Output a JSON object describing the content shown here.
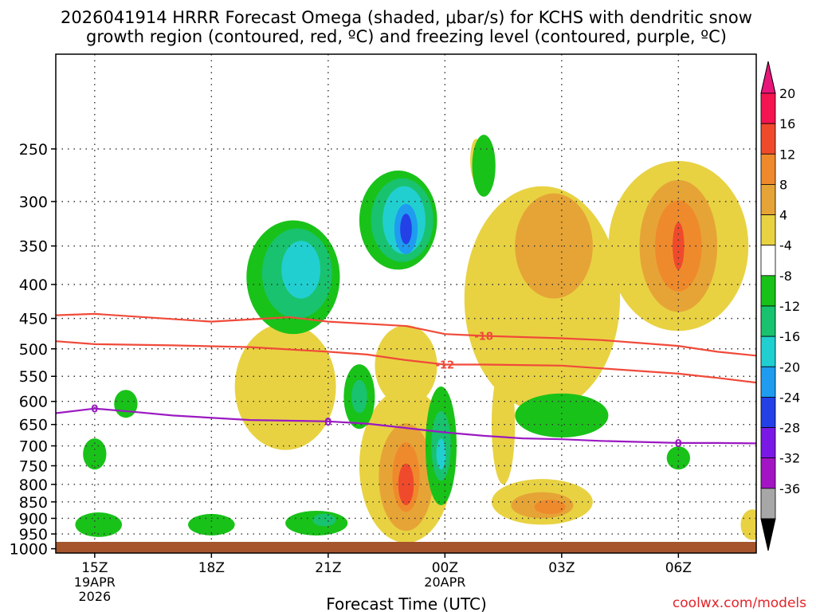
{
  "chart_data": {
    "type": "heatmap",
    "title_line1": "2026041914 HRRR Forecast Omega (shaded, μbar/s) for KCHS with dendritic snow",
    "title_line2": "growth region (contoured, red, ºC) and freezing level (contoured, purple, ºC)",
    "xlabel": "Forecast Time (UTC)",
    "ylabel": "",
    "credit": "coolwx.com/models",
    "x_ticks": [
      {
        "label": "15Z",
        "sub1": "19APR",
        "sub2": "2026",
        "hour": 0
      },
      {
        "label": "18Z",
        "sub1": "",
        "sub2": "",
        "hour": 3
      },
      {
        "label": "21Z",
        "sub1": "",
        "sub2": "",
        "hour": 6
      },
      {
        "label": "00Z",
        "sub1": "20APR",
        "sub2": "",
        "hour": 9
      },
      {
        "label": "03Z",
        "sub1": "",
        "sub2": "",
        "hour": 12
      },
      {
        "label": "06Z",
        "sub1": "",
        "sub2": "",
        "hour": 15
      }
    ],
    "xlim": [
      -1,
      17
    ],
    "y_ticks": [
      250,
      300,
      350,
      400,
      450,
      500,
      550,
      600,
      650,
      700,
      750,
      800,
      850,
      900,
      950,
      1000
    ],
    "ylim": [
      180,
      1015
    ],
    "y_scale": "log",
    "y_inverted": true,
    "grid": "dotted",
    "colorbar": {
      "labels": [
        "20",
        "16",
        "12",
        "8",
        "4",
        "-4",
        "-8",
        "-12",
        "-16",
        "-20",
        "-24",
        "-28",
        "-32",
        "-36"
      ],
      "colors": [
        "#f4144f",
        "#f04a2c",
        "#ef8a2c",
        "#e6a436",
        "#e8d242",
        "#ffffff",
        "#19c219",
        "#19c26e",
        "#21cfd0",
        "#1f9cf0",
        "#2341e6",
        "#7a19e6",
        "#a315c4",
        "#a7a7a7"
      ],
      "top_arrow": "#e8167a",
      "bottom_arrow": "#000000"
    },
    "contours": [
      {
        "label": "-18",
        "color": "#f04a3a",
        "points": [
          [
            -1,
            445
          ],
          [
            0,
            443
          ],
          [
            3,
            455
          ],
          [
            5,
            448
          ],
          [
            6,
            455
          ],
          [
            8,
            462
          ],
          [
            9,
            475
          ],
          [
            10,
            478
          ],
          [
            12,
            482
          ],
          [
            13,
            485
          ],
          [
            14,
            490
          ],
          [
            15,
            495
          ],
          [
            16,
            505
          ],
          [
            17,
            512
          ]
        ],
        "label_hour": 10,
        "label_p": 478
      },
      {
        "label": "-12",
        "color": "#f04a3a",
        "points": [
          [
            -1,
            487
          ],
          [
            0,
            492
          ],
          [
            2,
            494
          ],
          [
            4,
            497
          ],
          [
            6,
            505
          ],
          [
            7,
            510
          ],
          [
            8,
            520
          ],
          [
            9,
            528
          ],
          [
            10,
            528
          ],
          [
            12,
            530
          ],
          [
            13,
            535
          ],
          [
            15,
            545
          ],
          [
            16,
            553
          ],
          [
            17,
            562
          ]
        ],
        "label_hour": 9,
        "label_p": 528
      },
      {
        "label": "0",
        "color": "#9b19c2",
        "points": [
          [
            -1,
            625
          ],
          [
            0,
            615
          ],
          [
            1,
            622
          ],
          [
            2,
            630
          ],
          [
            4,
            640
          ],
          [
            6,
            643
          ],
          [
            7,
            648
          ],
          [
            8,
            658
          ],
          [
            9,
            668
          ],
          [
            10,
            676
          ],
          [
            11,
            682
          ],
          [
            12,
            684
          ],
          [
            13,
            688
          ],
          [
            15,
            693
          ],
          [
            16,
            693
          ],
          [
            17,
            694
          ]
        ],
        "label_hour": 0,
        "label_p": 615,
        "label_hours": [
          0,
          6,
          15
        ]
      }
    ],
    "omega_regions": [
      {
        "value": -8,
        "hour": 5.1,
        "p": 390,
        "dh": 1.2,
        "dp": 85
      },
      {
        "value": -12,
        "hour": 5.2,
        "p": 385,
        "dh": 0.9,
        "dp": 65
      },
      {
        "value": -16,
        "hour": 5.3,
        "p": 380,
        "dh": 0.5,
        "dp": 40
      },
      {
        "value": -8,
        "hour": 7.8,
        "p": 320,
        "dh": 1.0,
        "dp": 60
      },
      {
        "value": -12,
        "hour": 7.9,
        "p": 320,
        "dh": 0.8,
        "dp": 50
      },
      {
        "value": -16,
        "hour": 7.95,
        "p": 320,
        "dh": 0.55,
        "dp": 40
      },
      {
        "value": -20,
        "hour": 8.0,
        "p": 330,
        "dh": 0.3,
        "dp": 30
      },
      {
        "value": -24,
        "hour": 8.0,
        "p": 330,
        "dh": 0.15,
        "dp": 18
      },
      {
        "value": -8,
        "hour": 8.9,
        "p": 700,
        "dh": 0.4,
        "dp": 160
      },
      {
        "value": -12,
        "hour": 8.9,
        "p": 700,
        "dh": 0.25,
        "dp": 90
      },
      {
        "value": -16,
        "hour": 8.9,
        "p": 720,
        "dh": 0.12,
        "dp": 40
      },
      {
        "value": -8,
        "hour": 6.8,
        "p": 590,
        "dh": 0.4,
        "dp": 70
      },
      {
        "value": -12,
        "hour": 6.8,
        "p": 590,
        "dh": 0.2,
        "dp": 35
      },
      {
        "value": -8,
        "hour": 12.0,
        "p": 630,
        "dh": 1.2,
        "dp": 50
      },
      {
        "value": -8,
        "hour": 15.0,
        "p": 730,
        "dh": 0.3,
        "dp": 30
      },
      {
        "value": -8,
        "hour": 0.0,
        "p": 720,
        "dh": 0.3,
        "dp": 40
      },
      {
        "value": -8,
        "hour": 0.8,
        "p": 605,
        "dh": 0.3,
        "dp": 30
      },
      {
        "value": -8,
        "hour": 0.1,
        "p": 920,
        "dh": 0.6,
        "dp": 40
      },
      {
        "value": -8,
        "hour": 3.0,
        "p": 920,
        "dh": 0.6,
        "dp": 35
      },
      {
        "value": -8,
        "hour": 5.7,
        "p": 915,
        "dh": 0.8,
        "dp": 40
      },
      {
        "value": -12,
        "hour": 5.9,
        "p": 905,
        "dh": 0.3,
        "dp": 20
      },
      {
        "value": -8,
        "hour": 10.0,
        "p": 265,
        "dh": 0.3,
        "dp": 30
      },
      {
        "value": 4,
        "hour": 4.9,
        "p": 570,
        "dh": 1.3,
        "dp": 140
      },
      {
        "value": 4,
        "hour": 8.0,
        "p": 750,
        "dh": 1.2,
        "dp": 230
      },
      {
        "value": 8,
        "hour": 8.0,
        "p": 780,
        "dh": 0.7,
        "dp": 160
      },
      {
        "value": 12,
        "hour": 8.0,
        "p": 780,
        "dh": 0.35,
        "dp": 100
      },
      {
        "value": 16,
        "hour": 8.0,
        "p": 800,
        "dh": 0.2,
        "dp": 60
      },
      {
        "value": 4,
        "hour": 11.5,
        "p": 420,
        "dh": 2.0,
        "dp": 200
      },
      {
        "value": 8,
        "hour": 11.8,
        "p": 350,
        "dh": 1.0,
        "dp": 70
      },
      {
        "value": 4,
        "hour": 15.0,
        "p": 350,
        "dh": 1.8,
        "dp": 120
      },
      {
        "value": 8,
        "hour": 15.0,
        "p": 350,
        "dh": 1.0,
        "dp": 90
      },
      {
        "value": 12,
        "hour": 15.0,
        "p": 350,
        "dh": 0.6,
        "dp": 60
      },
      {
        "value": 16,
        "hour": 15.0,
        "p": 350,
        "dh": 0.15,
        "dp": 30
      },
      {
        "value": 4,
        "hour": 11.5,
        "p": 850,
        "dh": 1.3,
        "dp": 70
      },
      {
        "value": 8,
        "hour": 11.5,
        "p": 860,
        "dh": 0.8,
        "dp": 40
      },
      {
        "value": 12,
        "hour": 11.7,
        "p": 865,
        "dh": 0.4,
        "dp": 22
      },
      {
        "value": 4,
        "hour": 10.5,
        "p": 650,
        "dh": 0.3,
        "dp": 150
      },
      {
        "value": 4,
        "hour": 8.0,
        "p": 530,
        "dh": 0.8,
        "dp": 80
      },
      {
        "value": 4,
        "hour": 9.8,
        "p": 260,
        "dh": 0.15,
        "dp": 20
      },
      {
        "value": 4,
        "hour": 16.9,
        "p": 920,
        "dh": 0.3,
        "dp": 50
      }
    ]
  }
}
